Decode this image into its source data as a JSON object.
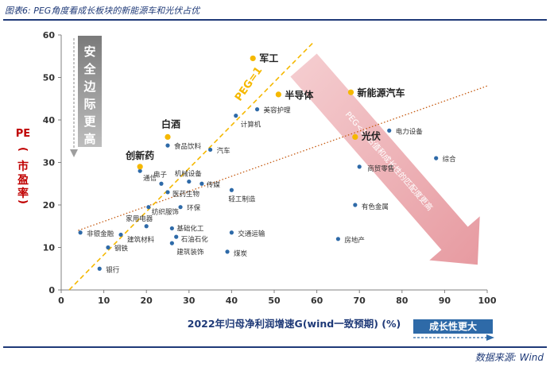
{
  "header": {
    "title": "图表6: PEG角度看成长板块的新能源车和光伏占优"
  },
  "footer": {
    "source": "数据来源: Wind"
  },
  "colors": {
    "navy": "#1f3a78",
    "blue_dot": "#2e6aa8",
    "yellow": "#f5b800",
    "red": "#c00000",
    "pink": "#e8a3a8",
    "xlabel_bg": "#2e6aa8"
  },
  "chart_data": {
    "type": "scatter",
    "title": "",
    "xlabel": "2022年归母净利润增速G(wind一致预期) (%)",
    "ylabel": "PE (市盈率)",
    "xlim": [
      0,
      100
    ],
    "ylim": [
      0,
      60
    ],
    "xticks": [
      0,
      10,
      20,
      30,
      40,
      50,
      60,
      70,
      80,
      90,
      100
    ],
    "yticks": [
      0,
      10,
      20,
      30,
      40,
      50,
      60
    ],
    "points": [
      {
        "label": "非银金融",
        "x": 4.5,
        "y": 13.5,
        "highlight": false
      },
      {
        "label": "钢铁",
        "x": 11,
        "y": 10,
        "highlight": false
      },
      {
        "label": "银行",
        "x": 9,
        "y": 5,
        "highlight": false
      },
      {
        "label": "建筑材料",
        "x": 14,
        "y": 13,
        "highlight": false
      },
      {
        "label": "家用电器",
        "x": 20,
        "y": 15,
        "highlight": false
      },
      {
        "label": "纺织服饰",
        "x": 20.5,
        "y": 19.5,
        "highlight": false
      },
      {
        "label": "基础化工",
        "x": 26,
        "y": 14.5,
        "highlight": false
      },
      {
        "label": "石油石化",
        "x": 27,
        "y": 12.5,
        "highlight": false
      },
      {
        "label": "建筑装饰",
        "x": 26,
        "y": 11,
        "highlight": false
      },
      {
        "label": "环保",
        "x": 28,
        "y": 19.5,
        "highlight": false
      },
      {
        "label": "医药生物",
        "x": 25,
        "y": 23,
        "highlight": false
      },
      {
        "label": "电子",
        "x": 23.5,
        "y": 25,
        "highlight": false
      },
      {
        "label": "机械设备",
        "x": 30,
        "y": 25.5,
        "highlight": false
      },
      {
        "label": "传媒",
        "x": 33,
        "y": 25,
        "highlight": false
      },
      {
        "label": "通信",
        "x": 18.5,
        "y": 28,
        "highlight": false
      },
      {
        "label": "食品饮料",
        "x": 25,
        "y": 34,
        "highlight": false
      },
      {
        "label": "汽车",
        "x": 35,
        "y": 33,
        "highlight": false
      },
      {
        "label": "轻工制造",
        "x": 40,
        "y": 23.5,
        "highlight": false
      },
      {
        "label": "交通运输",
        "x": 40,
        "y": 13.5,
        "highlight": false
      },
      {
        "label": "煤炭",
        "x": 39,
        "y": 9,
        "highlight": false
      },
      {
        "label": "计算机",
        "x": 41,
        "y": 41,
        "highlight": false
      },
      {
        "label": "美容护理",
        "x": 46,
        "y": 42.5,
        "highlight": false
      },
      {
        "label": "房地产",
        "x": 65,
        "y": 12,
        "highlight": false
      },
      {
        "label": "有色金属",
        "x": 69,
        "y": 20,
        "highlight": false
      },
      {
        "label": "商贸零售",
        "x": 70,
        "y": 29,
        "highlight": false
      },
      {
        "label": "电力设备",
        "x": 77,
        "y": 37.5,
        "highlight": false
      },
      {
        "label": "综合",
        "x": 88,
        "y": 31,
        "highlight": false
      },
      {
        "label": "创新药",
        "x": 18.5,
        "y": 29,
        "highlight": true
      },
      {
        "label": "白酒",
        "x": 25,
        "y": 36,
        "highlight": true
      },
      {
        "label": "军工",
        "x": 45,
        "y": 54.5,
        "highlight": true
      },
      {
        "label": "半导体",
        "x": 51,
        "y": 46,
        "highlight": true
      },
      {
        "label": "新能源汽车",
        "x": 68,
        "y": 46.5,
        "highlight": true
      },
      {
        "label": "光伏",
        "x": 69,
        "y": 36,
        "highlight": true
      }
    ],
    "peg_line": {
      "label": "PEG=1",
      "from": [
        0,
        0
      ],
      "to": [
        60,
        60
      ]
    },
    "trend_line": {
      "from": [
        4,
        14
      ],
      "to": [
        100,
        48
      ]
    },
    "annotations": {
      "left_box": "安全边际更高",
      "arrow_text": "PEG<1, 估值和成长性的匹配度更高",
      "growth_label": "成长性更大"
    }
  }
}
